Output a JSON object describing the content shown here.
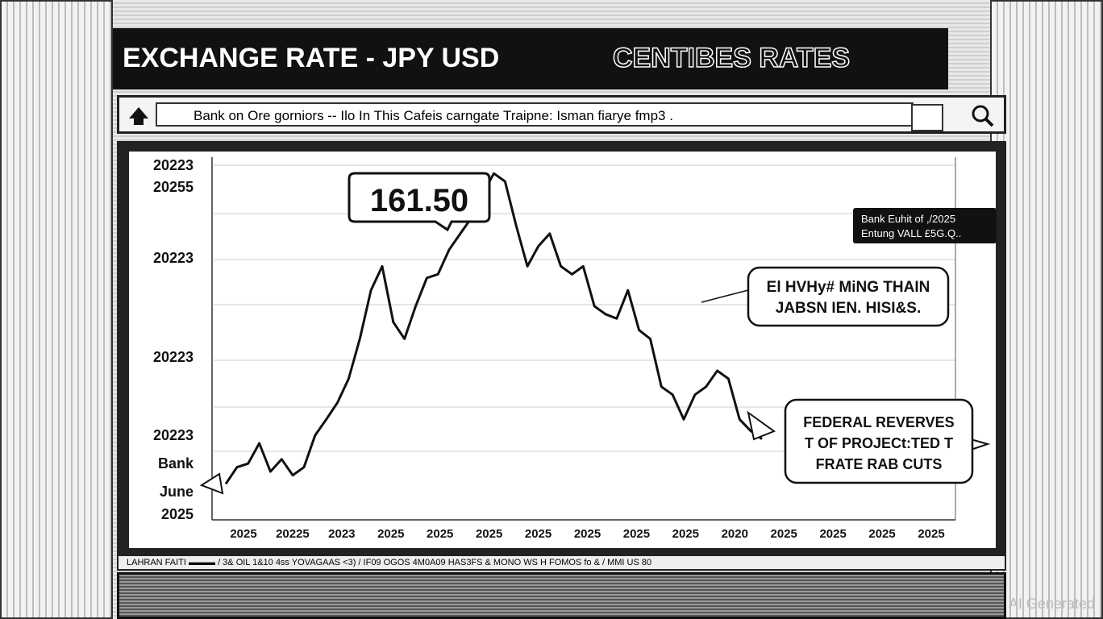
{
  "header": {
    "title": "EXCHANGE RATE - JPY USD",
    "subtitle": "CENTIBES RATES"
  },
  "search": {
    "text": "Bank on Ore gorniors -- Ilo In This Cafeis carngate Traipne: Isman fiarye fmp3 ."
  },
  "chart_data": {
    "type": "line",
    "values": [
      118.7,
      121.0,
      121.5,
      124.3,
      120.4,
      122.1,
      119.9,
      121.0,
      125.4,
      127.6,
      129.9,
      133.2,
      138.7,
      145.4,
      148.7,
      141.0,
      138.7,
      143.2,
      147.1,
      147.6,
      151.0,
      153.2,
      155.4,
      158.7,
      161.5,
      160.4,
      154.3,
      148.7,
      151.5,
      153.2,
      148.7,
      147.6,
      148.7,
      143.2,
      142.1,
      141.5,
      145.4,
      139.9,
      138.7,
      132.1,
      131.0,
      127.6,
      131.0,
      132.1,
      134.3,
      133.2,
      127.6,
      126.0,
      124.9
    ],
    "ylim": [
      114.3,
      164.3
    ],
    "color": "#111111",
    "y_labels": [
      "20223",
      "20255",
      "20223",
      "20223",
      "20223",
      "Bank",
      "June",
      "2025"
    ],
    "x_labels": [
      "2025",
      "20225",
      "2023",
      "2025",
      "2025",
      "2025",
      "2025",
      "2025",
      "2025",
      "2025",
      "2020",
      "2025",
      "2025",
      "2025",
      "2025"
    ],
    "peak_label": "161.50",
    "note_box": [
      "Bank Euhit of ,/2025",
      "Entung VALL £5G.Q.."
    ],
    "callout_1": [
      "El HVHy# MiNG THAIN",
      "JABSN IEN. HISI&S."
    ],
    "callout_2": [
      "FEDERAL REVERVES",
      "T OF PROJECt:TED T",
      "FRATE RAB CUTS"
    ]
  },
  "ticker": "LAHRAN FAITI ▬▬▬ / 3& OIL 1&10 4ss YOVAGAAS <3) / IF09 OGOS 4M0A09 HAS3FS & MONO WS H FOMOS fo & / MMI US 80",
  "watermark": "AI Generated"
}
